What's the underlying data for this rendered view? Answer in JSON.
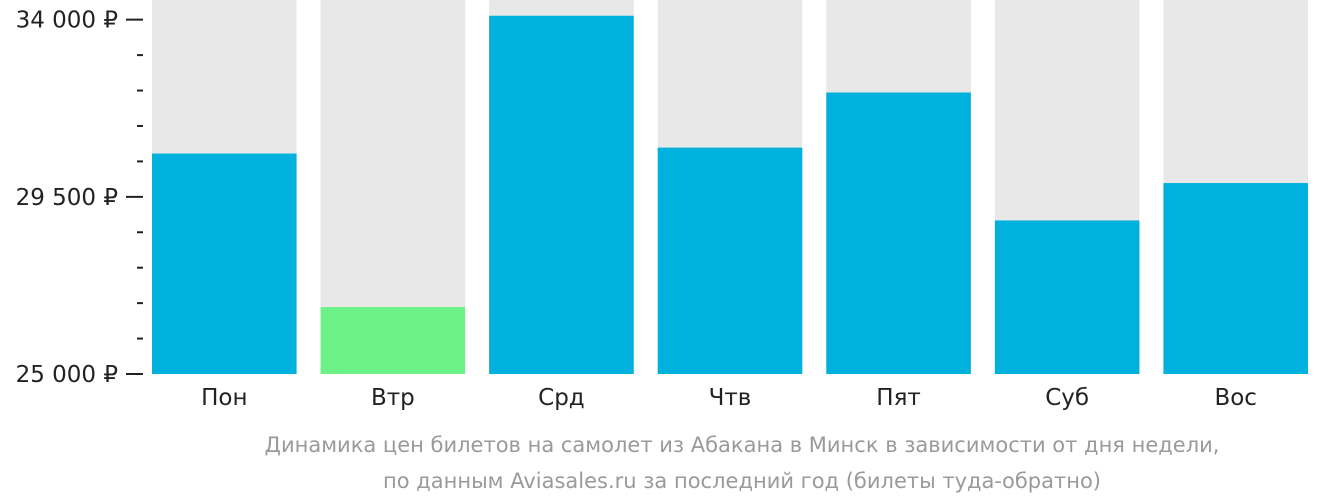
{
  "chart_data": {
    "type": "bar",
    "categories": [
      "Пон",
      "Втр",
      "Срд",
      "Чтв",
      "Пят",
      "Суб",
      "Вос"
    ],
    "values": [
      30600,
      26700,
      34100,
      30750,
      32150,
      28900,
      29850
    ],
    "ylim": [
      25000,
      34500
    ],
    "yticks": [
      {
        "value": 25000,
        "label": "25 000 ₽"
      },
      {
        "value": 29500,
        "label": "29 500 ₽"
      },
      {
        "value": 34000,
        "label": "34 000 ₽"
      }
    ],
    "minor_tick_step": 900,
    "grid": false,
    "highlight_index": 1,
    "colors": {
      "bar": "#00b0dd",
      "highlight": "#6cf186",
      "background_bar": "#e8e8e8",
      "axis_text": "#222222",
      "caption_text": "#9a9a9a"
    },
    "caption": {
      "line1": "Динамика цен билетов на самолет из Абакана в Минск в зависимости от дня недели,",
      "line2": "по данным Aviasales.ru за последний год (билеты туда-обратно)"
    }
  }
}
